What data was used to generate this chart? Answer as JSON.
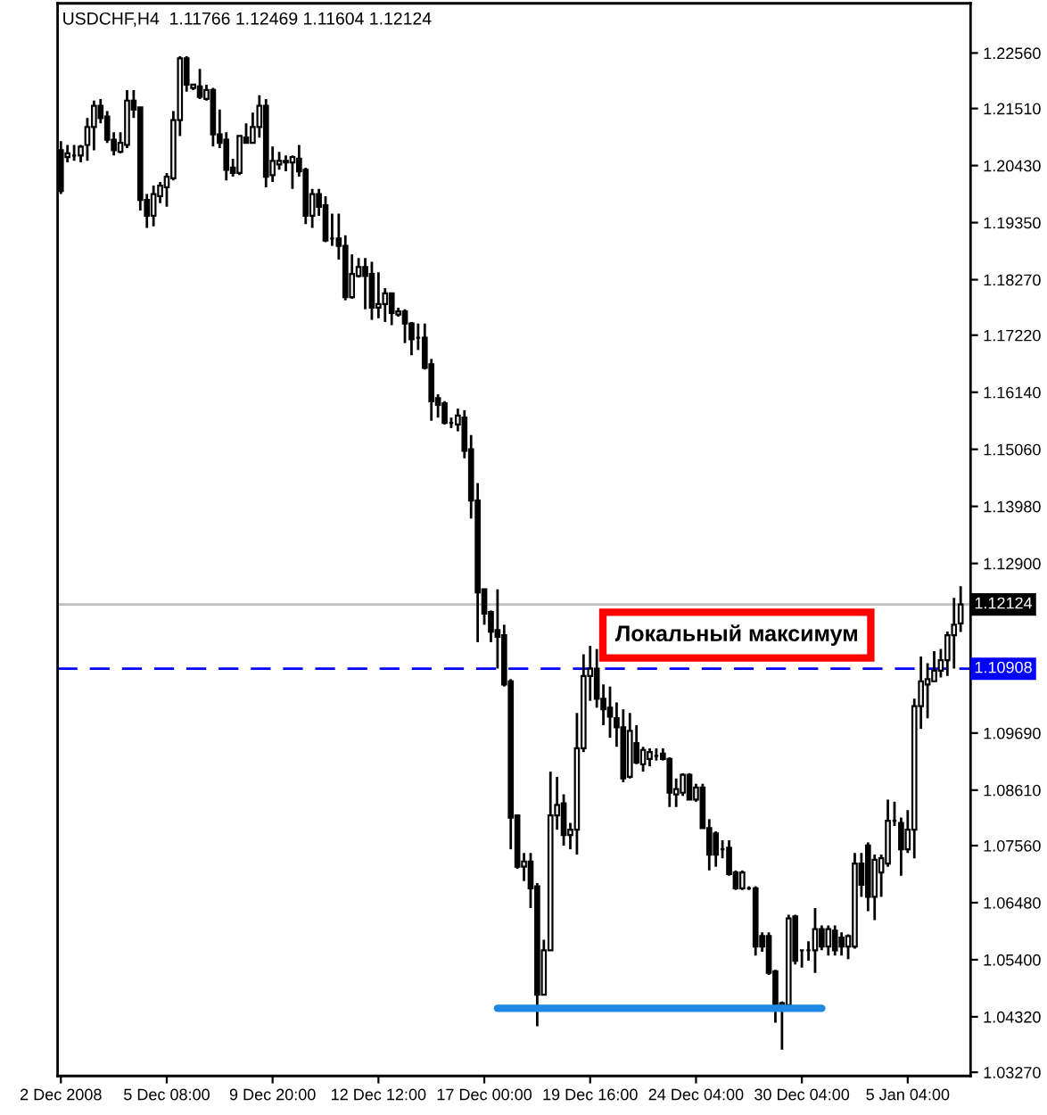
{
  "chart_data": {
    "type": "candlestick",
    "title": "USDCHF,H4  1.11766 1.12469 1.11604 1.12124",
    "categories": [
      "2 Dec 2008",
      null,
      null,
      null,
      null,
      null,
      null,
      null,
      null,
      null,
      null,
      null,
      null,
      null,
      null,
      null,
      "5 Dec 08:00",
      null,
      null,
      null,
      null,
      null,
      null,
      null,
      null,
      null,
      null,
      null,
      null,
      null,
      null,
      null,
      "9 Dec 20:00",
      null,
      null,
      null,
      null,
      null,
      null,
      null,
      null,
      null,
      null,
      null,
      null,
      null,
      null,
      null,
      "12 Dec 12:00",
      null,
      null,
      null,
      null,
      null,
      null,
      null,
      null,
      null,
      null,
      null,
      null,
      null,
      null,
      null,
      "17 Dec 00:00",
      null,
      null,
      null,
      null,
      null,
      null,
      null,
      null,
      null,
      null,
      null,
      null,
      null,
      null,
      null,
      "19 Dec 16:00",
      null,
      null,
      null,
      null,
      null,
      null,
      null,
      null,
      null,
      null,
      null,
      null,
      null,
      null,
      null,
      "24 Dec 04:00",
      null,
      null,
      null,
      null,
      null,
      null,
      null,
      null,
      null,
      null,
      null,
      null,
      null,
      null,
      null,
      "30 Dec 04:00",
      null,
      null,
      null,
      null,
      null,
      null,
      null,
      null,
      null,
      null,
      null,
      null,
      null,
      null,
      null,
      "5 Jan 04:00",
      null,
      null,
      null,
      null,
      null,
      null,
      null,
      null
    ],
    "ohlc": [
      [
        1.2072,
        1.2089,
        1.1989,
        1.1995
      ],
      [
        1.2059,
        1.2082,
        1.2049,
        1.2066
      ],
      [
        1.2062,
        1.2082,
        1.2052,
        1.2062
      ],
      [
        1.2062,
        1.2082,
        1.2049,
        1.2079
      ],
      [
        1.2082,
        1.2133,
        1.2052,
        1.2116
      ],
      [
        1.2116,
        1.2166,
        1.2072,
        1.2156
      ],
      [
        1.2156,
        1.2169,
        1.2123,
        1.2133
      ],
      [
        1.2136,
        1.2146,
        1.2086,
        1.2092
      ],
      [
        1.2092,
        1.2106,
        1.2062,
        1.2072
      ],
      [
        1.2069,
        1.2106,
        1.2066,
        1.2086
      ],
      [
        1.2082,
        1.2186,
        1.2076,
        1.2166
      ],
      [
        1.2166,
        1.2186,
        1.2133,
        1.2149
      ],
      [
        1.2153,
        1.2153,
        1.1958,
        1.1978
      ],
      [
        1.1978,
        1.1989,
        1.1925,
        1.1948
      ],
      [
        1.1948,
        1.2005,
        1.1928,
        1.1989
      ],
      [
        1.1985,
        1.2012,
        1.1972,
        1.2005
      ],
      [
        1.2002,
        1.2029,
        1.1965,
        1.2022
      ],
      [
        1.2019,
        1.2146,
        1.2015,
        1.2129
      ],
      [
        1.2129,
        1.225,
        1.2099,
        1.2246
      ],
      [
        1.2246,
        1.225,
        1.2183,
        1.2196
      ],
      [
        1.219,
        1.2196,
        1.2186,
        1.2196
      ],
      [
        1.2193,
        1.2226,
        1.2169,
        1.2173
      ],
      [
        1.2169,
        1.2196,
        1.2166,
        1.2186
      ],
      [
        1.2186,
        1.219,
        1.2079,
        1.2102
      ],
      [
        1.2102,
        1.2149,
        1.2076,
        1.2086
      ],
      [
        1.2092,
        1.2106,
        1.2015,
        1.2035
      ],
      [
        1.2039,
        1.2056,
        1.2022,
        1.2029
      ],
      [
        1.2029,
        1.2099,
        1.2025,
        1.2099
      ],
      [
        1.2096,
        1.2123,
        1.2086,
        1.2086
      ],
      [
        1.2086,
        1.2143,
        1.2086,
        1.2116
      ],
      [
        1.2116,
        1.2176,
        1.2096,
        1.2156
      ],
      [
        1.2156,
        1.2169,
        1.2002,
        1.2022
      ],
      [
        1.2025,
        1.2079,
        1.2012,
        1.2052
      ],
      [
        1.2045,
        1.2069,
        1.2035,
        1.2052
      ],
      [
        1.2049,
        1.2062,
        1.2032,
        1.2052
      ],
      [
        1.2049,
        1.2062,
        1.1999,
        1.2059
      ],
      [
        1.2056,
        1.2082,
        1.2022,
        1.2032
      ],
      [
        1.2035,
        1.2039,
        1.1932,
        1.1948
      ],
      [
        1.1948,
        1.1999,
        1.1925,
        1.1989
      ],
      [
        1.1989,
        1.1999,
        1.1948,
        1.1965
      ],
      [
        1.1968,
        1.1985,
        1.1898,
        1.1901
      ],
      [
        1.1905,
        1.1952,
        1.1891,
        1.1905
      ],
      [
        1.1905,
        1.1952,
        1.1865,
        1.1891
      ],
      [
        1.1891,
        1.1911,
        1.1788,
        1.1794
      ],
      [
        1.1794,
        1.1875,
        1.1791,
        1.1838
      ],
      [
        1.1834,
        1.1868,
        1.1831,
        1.1851
      ],
      [
        1.1851,
        1.1868,
        1.1771,
        1.1834
      ],
      [
        1.1838,
        1.1861,
        1.1751,
        1.1774
      ],
      [
        1.1774,
        1.1841,
        1.1754,
        1.1781
      ],
      [
        1.1781,
        1.1811,
        1.1747,
        1.1801
      ],
      [
        1.1801,
        1.1801,
        1.1741,
        1.1764
      ],
      [
        1.1761,
        1.1774,
        1.1757,
        1.1767
      ],
      [
        1.1767,
        1.1771,
        1.1707,
        1.1744
      ],
      [
        1.1744,
        1.1747,
        1.1684,
        1.1714
      ],
      [
        1.1717,
        1.1744,
        1.1694,
        1.1717
      ],
      [
        1.1717,
        1.1744,
        1.1657,
        1.166
      ],
      [
        1.1667,
        1.1677,
        1.156,
        1.1597
      ],
      [
        1.1603,
        1.161,
        1.1566,
        1.159
      ],
      [
        1.1593,
        1.1597,
        1.1553,
        1.1556
      ],
      [
        1.1556,
        1.1566,
        1.1546,
        1.1556
      ],
      [
        1.1553,
        1.1583,
        1.154,
        1.157
      ],
      [
        1.1566,
        1.158,
        1.1489,
        1.1503
      ],
      [
        1.1506,
        1.1533,
        1.1375,
        1.1409
      ],
      [
        1.1409,
        1.1442,
        1.1141,
        1.1235
      ],
      [
        1.1241,
        1.1241,
        1.1174,
        1.1195
      ],
      [
        1.1198,
        1.1201,
        1.1141,
        1.1161
      ],
      [
        1.1164,
        1.1241,
        1.1091,
        1.1151
      ],
      [
        1.1154,
        1.1174,
        1.1057,
        1.1061
      ],
      [
        1.1067,
        1.1071,
        1.0749,
        1.0809
      ],
      [
        1.0813,
        1.0813,
        1.0712,
        1.0716
      ],
      [
        1.0716,
        1.0742,
        1.0689,
        1.0726
      ],
      [
        1.0726,
        1.0742,
        1.0638,
        1.0675
      ],
      [
        1.0679,
        1.0685,
        1.0414,
        1.0474
      ],
      [
        1.0474,
        1.0578,
        1.0474,
        1.0558
      ],
      [
        1.0558,
        1.0896,
        1.0558,
        1.0813
      ],
      [
        1.0813,
        1.0886,
        1.0786,
        1.0833
      ],
      [
        1.0836,
        1.0853,
        1.0756,
        1.0776
      ],
      [
        1.0776,
        1.0799,
        1.0749,
        1.0786
      ],
      [
        1.0786,
        1.1007,
        1.0739,
        1.094
      ],
      [
        1.094,
        1.1118,
        1.0933,
        1.1077
      ],
      [
        1.1077,
        1.1134,
        1.103,
        1.1091
      ],
      [
        1.1091,
        1.1128,
        1.1017,
        1.1034
      ],
      [
        1.1034,
        1.1061,
        1.0984,
        1.1014
      ],
      [
        1.1017,
        1.1057,
        1.096,
        1.1
      ],
      [
        1.0997,
        1.1027,
        1.0943,
        1.098
      ],
      [
        1.098,
        1.1014,
        1.0876,
        1.0883
      ],
      [
        1.0886,
        1.1007,
        1.0883,
        1.0973
      ],
      [
        1.095,
        1.0984,
        1.091,
        1.0913
      ],
      [
        1.091,
        1.0943,
        1.0896,
        1.0937
      ],
      [
        1.092,
        1.094,
        1.0906,
        1.0933
      ],
      [
        1.0926,
        1.094,
        1.0917,
        1.0926
      ],
      [
        1.093,
        1.094,
        1.0917,
        1.092
      ],
      [
        1.092,
        1.0923,
        1.0829,
        1.0856
      ],
      [
        1.0853,
        1.0883,
        1.0829,
        1.0863
      ],
      [
        1.0856,
        1.0893,
        1.085,
        1.089
      ],
      [
        1.089,
        1.0893,
        1.0843,
        1.0843
      ],
      [
        1.0843,
        1.0873,
        1.0839,
        1.0866
      ],
      [
        1.0866,
        1.0873,
        1.0789,
        1.0789
      ],
      [
        1.0789,
        1.0806,
        1.0709,
        1.0739
      ],
      [
        1.0779,
        1.0783,
        1.0716,
        1.0739
      ],
      [
        1.0749,
        1.0766,
        1.0732,
        1.0749
      ],
      [
        1.0752,
        1.0766,
        1.0699,
        1.0702
      ],
      [
        1.0705,
        1.0709,
        1.0672,
        1.0675
      ],
      [
        1.0675,
        1.0709,
        1.0672,
        1.0705
      ],
      [
        1.0675,
        1.0679,
        1.0672,
        1.0675
      ],
      [
        1.0675,
        1.0679,
        1.0548,
        1.0565
      ],
      [
        1.0585,
        1.0592,
        1.0555,
        1.0565
      ],
      [
        1.0585,
        1.0592,
        1.0511,
        1.0515
      ],
      [
        1.0518,
        1.0521,
        1.0421,
        1.0454
      ],
      [
        1.0454,
        1.0461,
        1.037,
        1.0458
      ],
      [
        1.0454,
        1.0625,
        1.0454,
        1.0618
      ],
      [
        1.0622,
        1.0625,
        1.0531,
        1.0538
      ],
      [
        1.0558,
        1.0558,
        1.0525,
        1.0558
      ],
      [
        1.0558,
        1.0575,
        1.0538,
        1.0558
      ],
      [
        1.0558,
        1.0638,
        1.0515,
        1.0598
      ],
      [
        1.0598,
        1.0605,
        1.0558,
        1.0565
      ],
      [
        1.0565,
        1.0605,
        1.0548,
        1.0598
      ],
      [
        1.0595,
        1.0605,
        1.0548,
        1.0558
      ],
      [
        1.0582,
        1.0592,
        1.0548,
        1.0565
      ],
      [
        1.0565,
        1.0588,
        1.0541,
        1.0585
      ],
      [
        1.0565,
        1.0742,
        1.0561,
        1.0722
      ],
      [
        1.0722,
        1.0742,
        1.0659,
        1.0682
      ],
      [
        1.0756,
        1.0762,
        1.0632,
        1.0659
      ],
      [
        1.0659,
        1.0739,
        1.0615,
        1.0729
      ],
      [
        1.0705,
        1.0739,
        1.0659,
        1.0732
      ],
      [
        1.0722,
        1.0843,
        1.0716,
        1.0803
      ],
      [
        1.0803,
        1.0839,
        1.0793,
        1.0803
      ],
      [
        1.0799,
        1.0809,
        1.0699,
        1.0749
      ],
      [
        1.0749,
        1.0823,
        1.0742,
        1.0786
      ],
      [
        1.0786,
        1.1034,
        1.0732,
        1.102
      ],
      [
        1.102,
        1.1114,
        1.0977,
        1.1067
      ],
      [
        1.1061,
        1.1101,
        1.0997,
        1.1071
      ],
      [
        1.1067,
        1.1124,
        1.1067,
        1.1087
      ],
      [
        1.1087,
        1.1128,
        1.1074,
        1.1107
      ],
      [
        1.1107,
        1.1161,
        1.1077,
        1.1154
      ],
      [
        1.1154,
        1.1225,
        1.1091,
        1.1174
      ],
      [
        1.11766,
        1.12469,
        1.11604,
        1.12124
      ]
    ],
    "series": [
      {
        "type": "line",
        "color": "#1e88e5",
        "values": [
          null,
          null,
          null,
          null,
          null,
          null,
          null,
          null,
          null,
          null,
          null,
          null,
          null,
          null,
          null,
          null,
          null,
          null,
          null,
          null,
          null,
          null,
          null,
          null,
          null,
          null,
          null,
          null,
          null,
          null,
          null,
          null,
          null,
          null,
          null,
          null,
          null,
          null,
          null,
          null,
          null,
          null,
          null,
          null,
          null,
          null,
          null,
          null,
          null,
          null,
          null,
          null,
          null,
          null,
          null,
          null,
          null,
          null,
          null,
          null,
          null,
          null,
          null,
          null,
          null,
          null,
          1.0448,
          1.0448,
          1.0448,
          1.0448,
          1.0448,
          1.0448,
          1.0448,
          1.0448,
          1.0448,
          1.0448,
          1.0448,
          1.0448,
          1.0448,
          1.0448,
          1.0448,
          1.0448,
          1.0448,
          1.0448,
          1.0448,
          1.0448,
          1.0448,
          1.0448,
          1.0448,
          1.0448,
          1.0448,
          1.0448,
          1.0448,
          1.0448,
          1.0448,
          1.0448,
          1.0448,
          1.0448,
          1.0448,
          1.0448,
          1.0448,
          1.0448,
          1.0448,
          1.0448,
          1.0448,
          1.0448,
          1.0448,
          1.0448,
          1.0448,
          1.0448,
          1.0448,
          1.0448,
          1.0448,
          1.0448,
          1.0448,
          1.0448,
          null,
          null,
          null,
          null,
          null,
          null,
          null,
          null,
          null,
          null,
          null,
          null,
          null,
          null,
          null,
          null,
          null,
          null,
          null,
          null,
          null
        ]
      }
    ],
    "ylim": [
      1.032,
      1.235
    ],
    "yticks": [
      {
        "value": 1.2256,
        "label": "1.22560"
      },
      {
        "value": 1.2151,
        "label": "1.21510"
      },
      {
        "value": 1.2043,
        "label": "1.20430"
      },
      {
        "value": 1.1935,
        "label": "1.19350"
      },
      {
        "value": 1.1827,
        "label": "1.18270"
      },
      {
        "value": 1.1722,
        "label": "1.17220"
      },
      {
        "value": 1.1614,
        "label": "1.16140"
      },
      {
        "value": 1.1506,
        "label": "1.15060"
      },
      {
        "value": 1.1398,
        "label": "1.13980"
      },
      {
        "value": 1.129,
        "label": "1.12900"
      },
      {
        "value": 1.0969,
        "label": "1.09690"
      },
      {
        "value": 1.0861,
        "label": "1.08610"
      },
      {
        "value": 1.0756,
        "label": "1.07560"
      },
      {
        "value": 1.0648,
        "label": "1.06480"
      },
      {
        "value": 1.054,
        "label": "1.05400"
      },
      {
        "value": 1.0432,
        "label": "1.04320"
      },
      {
        "value": 1.0327,
        "label": "1.03270"
      }
    ],
    "ref_lines": [
      {
        "axis": "y",
        "value": 1.12124,
        "label": "1.12124",
        "color": "#c0c0c0",
        "line_style": "solid"
      },
      {
        "axis": "y",
        "value": 1.10908,
        "label": "1.10908",
        "color": "#0000ff",
        "line_style": "dashed"
      }
    ],
    "annotations": [
      "Локальный максимум"
    ],
    "grid": false
  }
}
